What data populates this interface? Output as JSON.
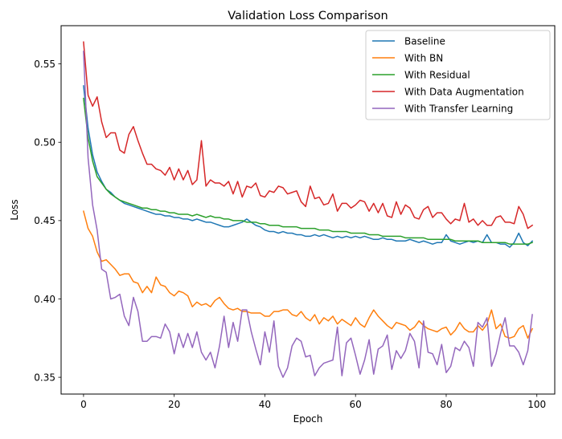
{
  "chart_data": {
    "type": "line",
    "title": "Validation Loss Comparison",
    "xlabel": "Epoch",
    "ylabel": "Loss",
    "xlim": [
      -4.95,
      103.95
    ],
    "ylim": [
      0.3393,
      0.5744
    ],
    "xticks": [
      0,
      20,
      40,
      60,
      80,
      100
    ],
    "yticks": [
      0.35,
      0.4,
      0.45,
      0.5,
      0.55
    ],
    "ytick_labels": [
      "0.35",
      "0.40",
      "0.45",
      "0.50",
      "0.55"
    ],
    "grid": false,
    "legend_position": "top-right",
    "series": [
      {
        "name": "Baseline",
        "color": "#1f77b4",
        "values": [
          0.536,
          0.509,
          0.492,
          0.481,
          0.475,
          0.47,
          0.468,
          0.465,
          0.463,
          0.461,
          0.46,
          0.459,
          0.458,
          0.457,
          0.456,
          0.455,
          0.454,
          0.454,
          0.453,
          0.453,
          0.452,
          0.452,
          0.451,
          0.451,
          0.45,
          0.451,
          0.45,
          0.449,
          0.449,
          0.448,
          0.447,
          0.446,
          0.446,
          0.447,
          0.448,
          0.449,
          0.451,
          0.449,
          0.447,
          0.446,
          0.444,
          0.443,
          0.443,
          0.442,
          0.443,
          0.442,
          0.442,
          0.441,
          0.441,
          0.44,
          0.44,
          0.441,
          0.44,
          0.441,
          0.44,
          0.439,
          0.44,
          0.439,
          0.44,
          0.439,
          0.44,
          0.439,
          0.44,
          0.439,
          0.438,
          0.438,
          0.439,
          0.438,
          0.438,
          0.437,
          0.437,
          0.437,
          0.438,
          0.437,
          0.436,
          0.437,
          0.436,
          0.435,
          0.436,
          0.436,
          0.441,
          0.437,
          0.436,
          0.435,
          0.436,
          0.437,
          0.436,
          0.437,
          0.436,
          0.441,
          0.436,
          0.436,
          0.435,
          0.435,
          0.433,
          0.436,
          0.442,
          0.436,
          0.434,
          0.437
        ]
      },
      {
        "name": "With BN",
        "color": "#ff7f0e",
        "values": [
          0.456,
          0.445,
          0.44,
          0.43,
          0.424,
          0.425,
          0.422,
          0.419,
          0.415,
          0.416,
          0.416,
          0.411,
          0.41,
          0.404,
          0.408,
          0.404,
          0.414,
          0.409,
          0.408,
          0.404,
          0.402,
          0.405,
          0.404,
          0.402,
          0.395,
          0.398,
          0.396,
          0.397,
          0.395,
          0.399,
          0.401,
          0.397,
          0.394,
          0.393,
          0.394,
          0.392,
          0.392,
          0.391,
          0.391,
          0.391,
          0.389,
          0.389,
          0.392,
          0.392,
          0.393,
          0.393,
          0.39,
          0.389,
          0.392,
          0.388,
          0.386,
          0.39,
          0.384,
          0.388,
          0.386,
          0.389,
          0.384,
          0.387,
          0.385,
          0.383,
          0.388,
          0.384,
          0.382,
          0.388,
          0.393,
          0.389,
          0.386,
          0.383,
          0.381,
          0.385,
          0.384,
          0.383,
          0.38,
          0.382,
          0.386,
          0.383,
          0.381,
          0.38,
          0.379,
          0.381,
          0.382,
          0.377,
          0.38,
          0.385,
          0.381,
          0.379,
          0.379,
          0.383,
          0.38,
          0.384,
          0.393,
          0.381,
          0.384,
          0.376,
          0.375,
          0.376,
          0.381,
          0.383,
          0.375,
          0.381
        ]
      },
      {
        "name": "With Residual",
        "color": "#2ca02c",
        "values": [
          0.528,
          0.503,
          0.488,
          0.478,
          0.474,
          0.47,
          0.467,
          0.465,
          0.463,
          0.462,
          0.461,
          0.46,
          0.459,
          0.458,
          0.458,
          0.457,
          0.457,
          0.456,
          0.456,
          0.455,
          0.455,
          0.454,
          0.454,
          0.454,
          0.453,
          0.454,
          0.453,
          0.452,
          0.453,
          0.452,
          0.452,
          0.451,
          0.451,
          0.45,
          0.45,
          0.45,
          0.449,
          0.449,
          0.449,
          0.448,
          0.448,
          0.447,
          0.447,
          0.447,
          0.446,
          0.446,
          0.446,
          0.446,
          0.445,
          0.445,
          0.445,
          0.445,
          0.444,
          0.444,
          0.444,
          0.443,
          0.443,
          0.443,
          0.443,
          0.442,
          0.442,
          0.442,
          0.442,
          0.441,
          0.441,
          0.441,
          0.44,
          0.44,
          0.44,
          0.44,
          0.44,
          0.439,
          0.439,
          0.439,
          0.439,
          0.439,
          0.438,
          0.438,
          0.438,
          0.438,
          0.438,
          0.438,
          0.437,
          0.437,
          0.437,
          0.437,
          0.437,
          0.437,
          0.436,
          0.436,
          0.436,
          0.436,
          0.436,
          0.436,
          0.435,
          0.435,
          0.435,
          0.435,
          0.435,
          0.436
        ]
      },
      {
        "name": "With Data Augmentation",
        "color": "#d62728",
        "values": [
          0.564,
          0.53,
          0.523,
          0.529,
          0.513,
          0.503,
          0.506,
          0.506,
          0.495,
          0.493,
          0.505,
          0.51,
          0.501,
          0.493,
          0.486,
          0.486,
          0.483,
          0.482,
          0.479,
          0.484,
          0.476,
          0.483,
          0.476,
          0.482,
          0.473,
          0.476,
          0.501,
          0.472,
          0.476,
          0.474,
          0.474,
          0.472,
          0.475,
          0.467,
          0.475,
          0.465,
          0.472,
          0.471,
          0.474,
          0.466,
          0.465,
          0.469,
          0.468,
          0.472,
          0.471,
          0.467,
          0.468,
          0.469,
          0.462,
          0.459,
          0.472,
          0.464,
          0.465,
          0.46,
          0.461,
          0.467,
          0.456,
          0.461,
          0.461,
          0.458,
          0.46,
          0.463,
          0.462,
          0.456,
          0.461,
          0.455,
          0.461,
          0.453,
          0.452,
          0.462,
          0.454,
          0.46,
          0.458,
          0.452,
          0.451,
          0.457,
          0.459,
          0.452,
          0.455,
          0.455,
          0.451,
          0.448,
          0.451,
          0.45,
          0.461,
          0.449,
          0.451,
          0.447,
          0.45,
          0.447,
          0.447,
          0.452,
          0.453,
          0.449,
          0.449,
          0.448,
          0.459,
          0.454,
          0.445,
          0.447
        ]
      },
      {
        "name": "With Transfer Learning",
        "color": "#9467bd",
        "values": [
          0.558,
          0.49,
          0.46,
          0.444,
          0.419,
          0.417,
          0.4,
          0.401,
          0.403,
          0.389,
          0.383,
          0.401,
          0.392,
          0.373,
          0.373,
          0.376,
          0.376,
          0.375,
          0.384,
          0.379,
          0.365,
          0.378,
          0.369,
          0.378,
          0.369,
          0.379,
          0.366,
          0.361,
          0.366,
          0.356,
          0.37,
          0.389,
          0.369,
          0.385,
          0.373,
          0.393,
          0.393,
          0.379,
          0.368,
          0.358,
          0.379,
          0.366,
          0.386,
          0.357,
          0.35,
          0.356,
          0.37,
          0.375,
          0.373,
          0.363,
          0.364,
          0.351,
          0.356,
          0.359,
          0.36,
          0.361,
          0.382,
          0.351,
          0.372,
          0.375,
          0.364,
          0.352,
          0.361,
          0.374,
          0.352,
          0.368,
          0.37,
          0.377,
          0.355,
          0.367,
          0.362,
          0.367,
          0.378,
          0.373,
          0.356,
          0.386,
          0.366,
          0.365,
          0.358,
          0.371,
          0.353,
          0.357,
          0.369,
          0.367,
          0.373,
          0.369,
          0.357,
          0.385,
          0.382,
          0.388,
          0.357,
          0.365,
          0.378,
          0.388,
          0.37,
          0.37,
          0.366,
          0.358,
          0.367,
          0.39
        ]
      }
    ]
  }
}
